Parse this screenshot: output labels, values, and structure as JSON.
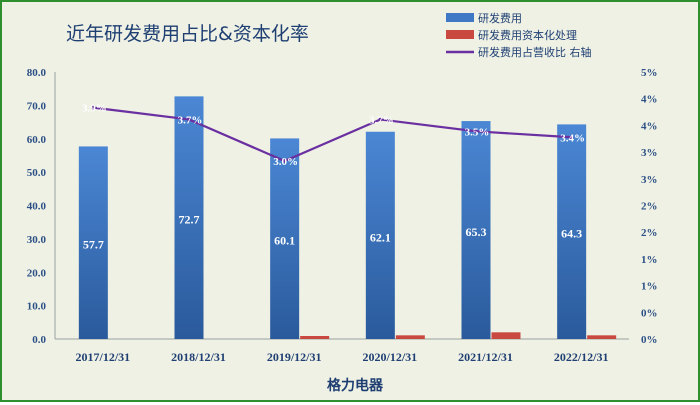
{
  "chart_data": {
    "type": "bar",
    "title": "近年研发费用占比&资本化率",
    "xlabel": "格力电器",
    "categories": [
      "2017/12/31",
      "2018/12/31",
      "2019/12/31",
      "2020/12/31",
      "2021/12/31",
      "2022/12/31"
    ],
    "series": [
      {
        "name": "研发费用",
        "type": "bar",
        "axis": "left",
        "color": "#3f78c4",
        "values": [
          57.7,
          72.7,
          60.1,
          62.1,
          65.3,
          64.3
        ],
        "labels": [
          "57.7",
          "72.7",
          "60.1",
          "62.1",
          "65.3",
          "64.3"
        ]
      },
      {
        "name": "研发费用资本化处理",
        "type": "bar",
        "axis": "left",
        "color": "#c9483f",
        "values": [
          0,
          0,
          0.9,
          1.1,
          2.0,
          1.1
        ]
      },
      {
        "name": "研发费用占营收比 右轴",
        "type": "line",
        "axis": "right",
        "color": "#6a2fa0",
        "values": [
          3.9,
          3.7,
          3.0,
          3.7,
          3.5,
          3.4
        ],
        "labels": [
          "3.9%",
          "3.7%",
          "3.0%",
          "3.7%",
          "3.5%",
          "3.4%"
        ]
      }
    ],
    "ylim": [
      0,
      80
    ],
    "y_ticks": [
      "0.0",
      "10.0",
      "20.0",
      "30.0",
      "40.0",
      "50.0",
      "60.0",
      "70.0",
      "80.0"
    ],
    "y2_ticks": [
      "0%",
      "0%",
      "1%",
      "1%",
      "2%",
      "2%",
      "3%",
      "3%",
      "4%",
      "4%",
      "5%"
    ],
    "y2lim": [
      0,
      4.5
    ],
    "legend_position": "top-right",
    "grid": false
  }
}
